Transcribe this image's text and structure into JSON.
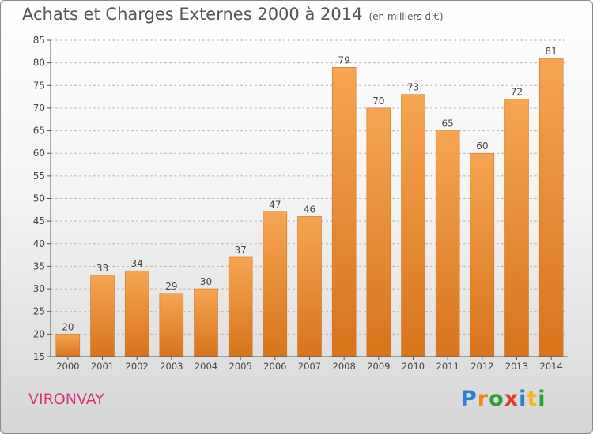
{
  "title": "Achats et Charges Externes 2000 à 2014",
  "unit": "(en milliers d'€)",
  "commune": "VIRONVAY",
  "logo": {
    "letters": [
      "P",
      "r",
      "o",
      "x",
      "i",
      "t",
      "i"
    ],
    "colors": [
      "#2f7fd0",
      "#f08a1c",
      "#2f9e3a",
      "#e23a2c",
      "#2f7fd0",
      "#f0b81c",
      "#2f9e3a"
    ]
  },
  "colors": {
    "bar": "#f0953a",
    "axis": "#555555",
    "grid": "#b8b8b8",
    "commune": "#d6337a"
  },
  "chart_data": {
    "type": "bar",
    "title": "Achats et Charges Externes 2000 à 2014",
    "subtitle": "(en milliers d'€)",
    "categories": [
      "2000",
      "2001",
      "2002",
      "2003",
      "2004",
      "2005",
      "2006",
      "2007",
      "2008",
      "2009",
      "2010",
      "2011",
      "2012",
      "2013",
      "2014"
    ],
    "values": [
      20,
      33,
      34,
      29,
      30,
      37,
      47,
      46,
      79,
      70,
      73,
      65,
      60,
      72,
      81
    ],
    "ylim": [
      15,
      85
    ],
    "yticks": [
      15,
      20,
      25,
      30,
      35,
      40,
      45,
      50,
      55,
      60,
      65,
      70,
      75,
      80,
      85
    ],
    "grid": "horizontal dashed",
    "data_labels": true
  }
}
